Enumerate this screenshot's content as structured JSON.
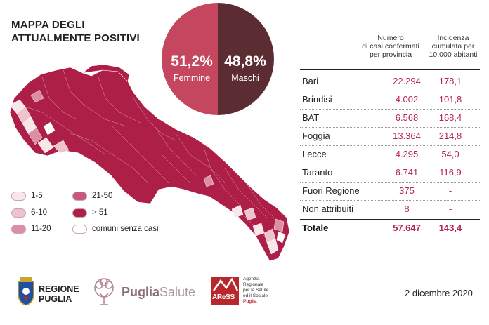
{
  "title": {
    "line1": "MAPPA DEGLI",
    "line2": "ATTUALMENTE POSITIVI"
  },
  "gender": {
    "female": {
      "percent": "51,2%",
      "label": "Femmine",
      "color": "#c4475f"
    },
    "male": {
      "percent": "48,8%",
      "label": "Maschi",
      "color": "#5b2d33"
    }
  },
  "table": {
    "header_cases": [
      "Numero",
      "di casi confermati",
      "per provincia"
    ],
    "header_incidence": [
      "Incidenza",
      "cumulata per",
      "10.000 abitanti"
    ],
    "rows": [
      {
        "name": "Bari",
        "cases": "22.294",
        "incidence": "178,1"
      },
      {
        "name": "Brindisi",
        "cases": "4.002",
        "incidence": "101,8"
      },
      {
        "name": "BAT",
        "cases": "6.568",
        "incidence": "168,4"
      },
      {
        "name": "Foggia",
        "cases": "13.364",
        "incidence": "214,8"
      },
      {
        "name": "Lecce",
        "cases": "4.295",
        "incidence": "54,0"
      },
      {
        "name": "Taranto",
        "cases": "6.741",
        "incidence": "116,9"
      },
      {
        "name": "Fuori Regione",
        "cases": "375",
        "incidence": "-"
      },
      {
        "name": "Non attribuiti",
        "cases": "8",
        "incidence": "-"
      }
    ],
    "total": {
      "name": "Totale",
      "cases": "57.647",
      "incidence": "143,4"
    }
  },
  "legend": [
    {
      "label": "1-5",
      "color": "#f7e6ea"
    },
    {
      "label": "6-10",
      "color": "#efc3cd"
    },
    {
      "label": "11-20",
      "color": "#dc8fa4"
    },
    {
      "label": "21-50",
      "color": "#c65a78"
    },
    {
      "label": "> 51",
      "color": "#ad1f47"
    },
    {
      "label": "comuni senza casi",
      "color": "#ffffff"
    }
  ],
  "map_color": "#ad1f47",
  "logos": {
    "regione": {
      "line1": "REGIONE",
      "line2": "PUGLIA"
    },
    "puglia_salute": {
      "part1": "Puglia",
      "part2": "Salute"
    },
    "aress": {
      "abbr": "AReSS",
      "text": [
        "Agenzia",
        "Regionale",
        "per la Salute",
        "ed il Sociale",
        "Puglia"
      ]
    }
  },
  "date": "2 dicembre 2020"
}
